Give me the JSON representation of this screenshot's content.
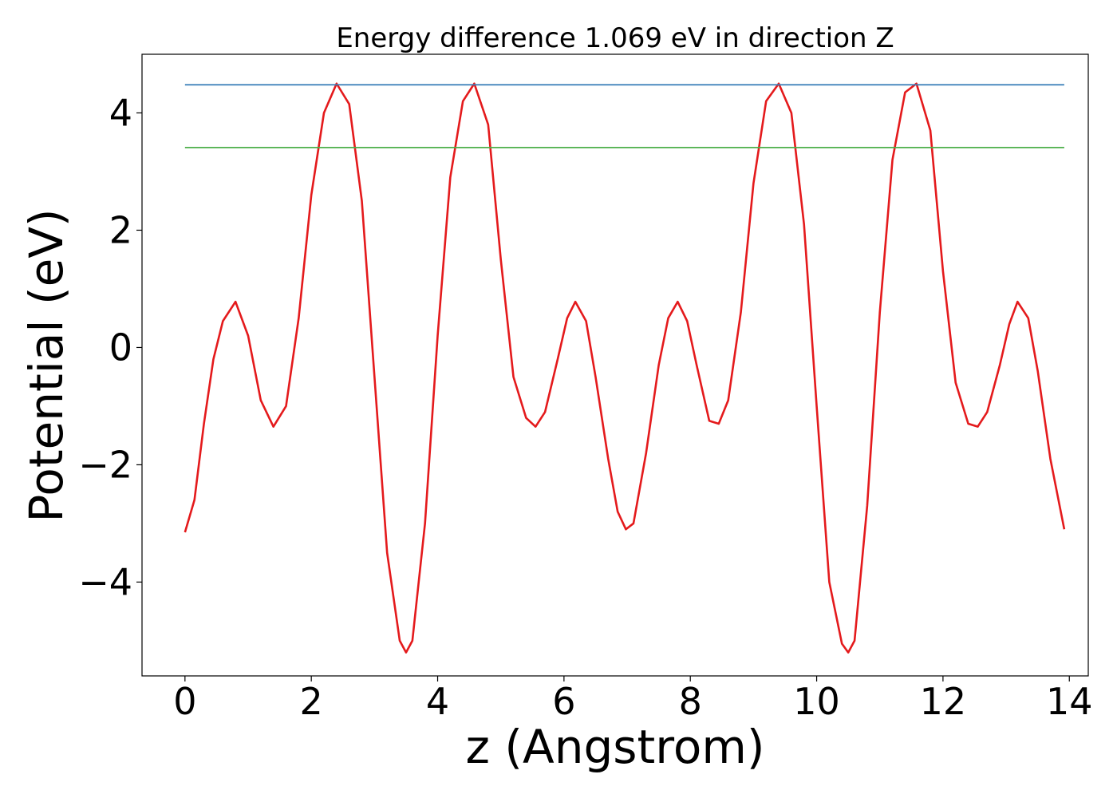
{
  "chart_data": {
    "type": "line",
    "title": "Energy difference 1.069 eV in direction Z",
    "xlabel": "z (Angstrom)",
    "ylabel": "Potential (eV)",
    "xlim": [
      -0.68,
      14.3
    ],
    "ylim": [
      -5.6,
      5.0
    ],
    "xticks": [
      0,
      2,
      4,
      6,
      8,
      10,
      12,
      14
    ],
    "xtick_labels": [
      "0",
      "2",
      "4",
      "6",
      "8",
      "10",
      "12",
      "14"
    ],
    "yticks": [
      -4,
      -2,
      0,
      2,
      4
    ],
    "ytick_labels": [
      "−4",
      "−2",
      "0",
      "2",
      "4"
    ],
    "grid": false,
    "series": [
      {
        "color": "#e41a1c",
        "x": [
          0.0,
          0.15,
          0.3,
          0.45,
          0.6,
          0.8,
          1.0,
          1.2,
          1.4,
          1.6,
          1.8,
          2.0,
          2.2,
          2.4,
          2.6,
          2.8,
          3.0,
          3.2,
          3.4,
          3.5,
          3.6,
          3.8,
          4.0,
          4.2,
          4.4,
          4.58,
          4.8,
          5.0,
          5.2,
          5.4,
          5.55,
          5.7,
          5.9,
          6.05,
          6.18,
          6.35,
          6.5,
          6.7,
          6.85,
          6.98,
          7.1,
          7.3,
          7.5,
          7.65,
          7.8,
          7.95,
          8.1,
          8.3,
          8.45,
          8.6,
          8.8,
          9.0,
          9.2,
          9.4,
          9.6,
          9.8,
          10.0,
          10.2,
          10.4,
          10.5,
          10.6,
          10.8,
          11.0,
          11.2,
          11.4,
          11.58,
          11.8,
          12.0,
          12.2,
          12.4,
          12.55,
          12.7,
          12.9,
          13.05,
          13.18,
          13.35,
          13.5,
          13.7,
          13.92
        ],
        "values": [
          -3.15,
          -2.6,
          -1.3,
          -0.2,
          0.45,
          0.78,
          0.2,
          -0.9,
          -1.35,
          -1.0,
          0.5,
          2.6,
          4.0,
          4.5,
          4.15,
          2.5,
          -0.5,
          -3.5,
          -5.0,
          -5.2,
          -5.0,
          -3.0,
          0.2,
          2.9,
          4.2,
          4.5,
          3.8,
          1.5,
          -0.5,
          -1.2,
          -1.35,
          -1.1,
          -0.2,
          0.5,
          0.78,
          0.45,
          -0.5,
          -1.9,
          -2.8,
          -3.1,
          -3.0,
          -1.8,
          -0.3,
          0.5,
          0.78,
          0.45,
          -0.3,
          -1.25,
          -1.3,
          -0.9,
          0.6,
          2.8,
          4.2,
          4.5,
          4.0,
          2.1,
          -1.0,
          -4.0,
          -5.05,
          -5.2,
          -5.0,
          -2.7,
          0.6,
          3.2,
          4.35,
          4.5,
          3.7,
          1.3,
          -0.6,
          -1.3,
          -1.35,
          -1.1,
          -0.3,
          0.4,
          0.78,
          0.5,
          -0.4,
          -1.9,
          -3.1
        ]
      },
      {
        "color": "#377eb8",
        "x": [
          0.0,
          13.92
        ],
        "values": [
          4.48,
          4.48
        ]
      },
      {
        "color": "#4daf4a",
        "x": [
          0.0,
          13.92
        ],
        "values": [
          3.41,
          3.41
        ]
      }
    ]
  }
}
